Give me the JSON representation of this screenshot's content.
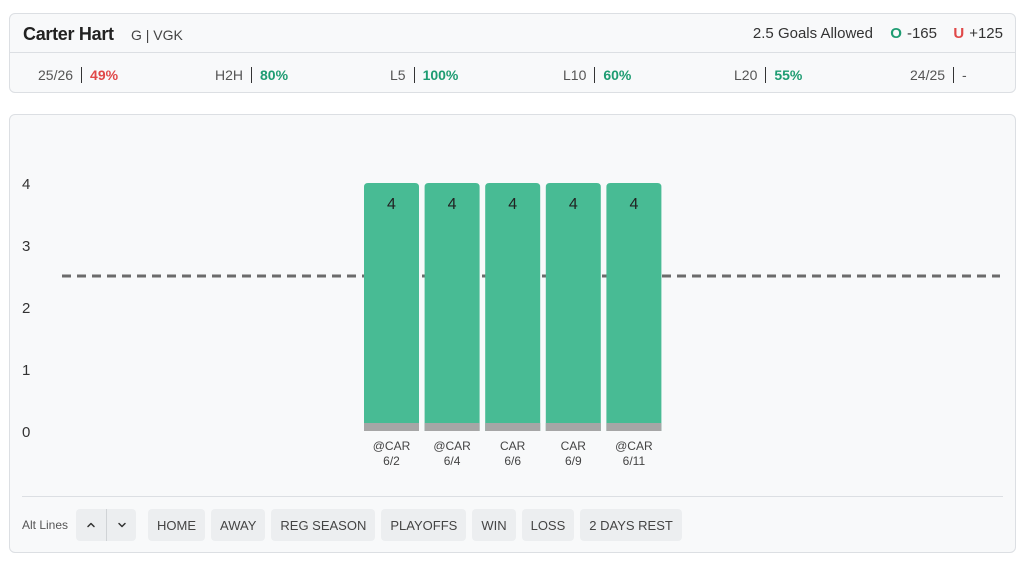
{
  "header": {
    "player_name": "Carter Hart",
    "player_meta": "G | VGK",
    "market": "2.5 Goals Allowed",
    "over_letter": "O",
    "over_odds": "-165",
    "under_letter": "U",
    "under_odds": "+125"
  },
  "stats": [
    {
      "label": "25/26",
      "value": "49%",
      "tone": "red"
    },
    {
      "label": "H2H",
      "value": "80%",
      "tone": "green"
    },
    {
      "label": "L5",
      "value": "100%",
      "tone": "green"
    },
    {
      "label": "L10",
      "value": "60%",
      "tone": "green"
    },
    {
      "label": "L20",
      "value": "55%",
      "tone": "green"
    },
    {
      "label": "24/25",
      "value": "-",
      "tone": "gray"
    }
  ],
  "chart_data": {
    "type": "bar",
    "categories": [
      "@CAR 6/2",
      "@CAR 6/4",
      "CAR 6/6",
      "CAR 6/9",
      "@CAR 6/11"
    ],
    "category_lines": [
      [
        "@CAR",
        "6/2"
      ],
      [
        "@CAR",
        "6/4"
      ],
      [
        "CAR",
        "6/6"
      ],
      [
        "CAR",
        "6/9"
      ],
      [
        "@CAR",
        "6/11"
      ]
    ],
    "values": [
      4,
      4,
      4,
      4,
      4
    ],
    "data_labels": [
      "4",
      "4",
      "4",
      "4",
      "4"
    ],
    "y_ticks": [
      "0",
      "1",
      "2",
      "3",
      "4"
    ],
    "ylim": [
      0,
      4
    ],
    "line_value": 2.5,
    "bar_color": "#48bb94",
    "bar_base_color": "#a6a6a6",
    "line_color": "#6b6b6b",
    "title": "",
    "xlabel": "",
    "ylabel": ""
  },
  "controls": {
    "alt_lines_label": "Alt Lines",
    "up_icon": "chevron-up-icon",
    "down_icon": "chevron-down-icon",
    "filters": [
      "HOME",
      "AWAY",
      "REG SEASON",
      "PLAYOFFS",
      "WIN",
      "LOSS",
      "2 DAYS REST"
    ]
  }
}
